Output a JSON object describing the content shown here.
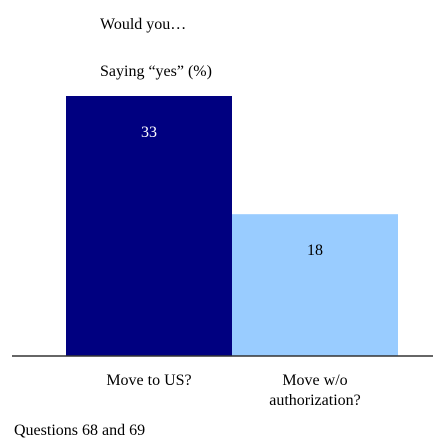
{
  "chart_data": {
    "type": "bar",
    "title": "Would you…",
    "subtitle": "Saying “yes” (%)",
    "categories": [
      "Move to US?",
      "Move w/o authorization?"
    ],
    "category_lines": [
      [
        "Move to US?"
      ],
      [
        "Move w/o",
        "authorization?"
      ]
    ],
    "values": [
      33,
      18
    ],
    "value_labels": [
      "33",
      "18"
    ],
    "bar_colors": [
      "#000080",
      "#99CCFF"
    ],
    "value_label_colors": [
      "#ffffff",
      "#000000"
    ],
    "ylim": [
      0,
      33
    ],
    "grid": false,
    "legend": "none",
    "footnote": "Questions 68 and 69"
  }
}
